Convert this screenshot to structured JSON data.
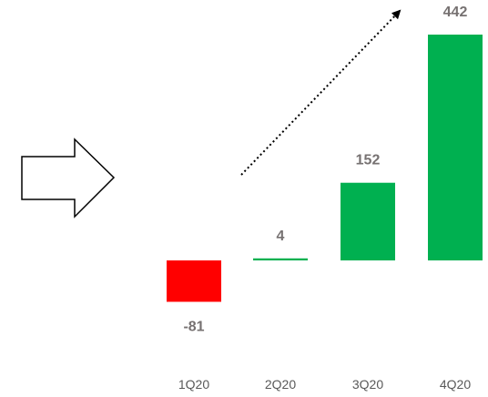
{
  "chart_data": {
    "type": "bar",
    "title": "",
    "xlabel": "",
    "ylabel": "",
    "categories": [
      "1Q20",
      "2Q20",
      "3Q20",
      "4Q20"
    ],
    "values": [
      -81,
      4,
      152,
      442
    ],
    "value_labels": [
      "-81",
      "4",
      "152",
      "442"
    ],
    "bar_colors": [
      "#ff0000",
      "#00b050",
      "#00b050",
      "#00b050"
    ],
    "ylim": [
      -81,
      442
    ],
    "grid": false,
    "legend": "none",
    "annotations": [
      {
        "type": "dotted-arrow",
        "meaning": "upward trend"
      },
      {
        "type": "outlined-right-arrow",
        "color": "#000000"
      }
    ]
  }
}
